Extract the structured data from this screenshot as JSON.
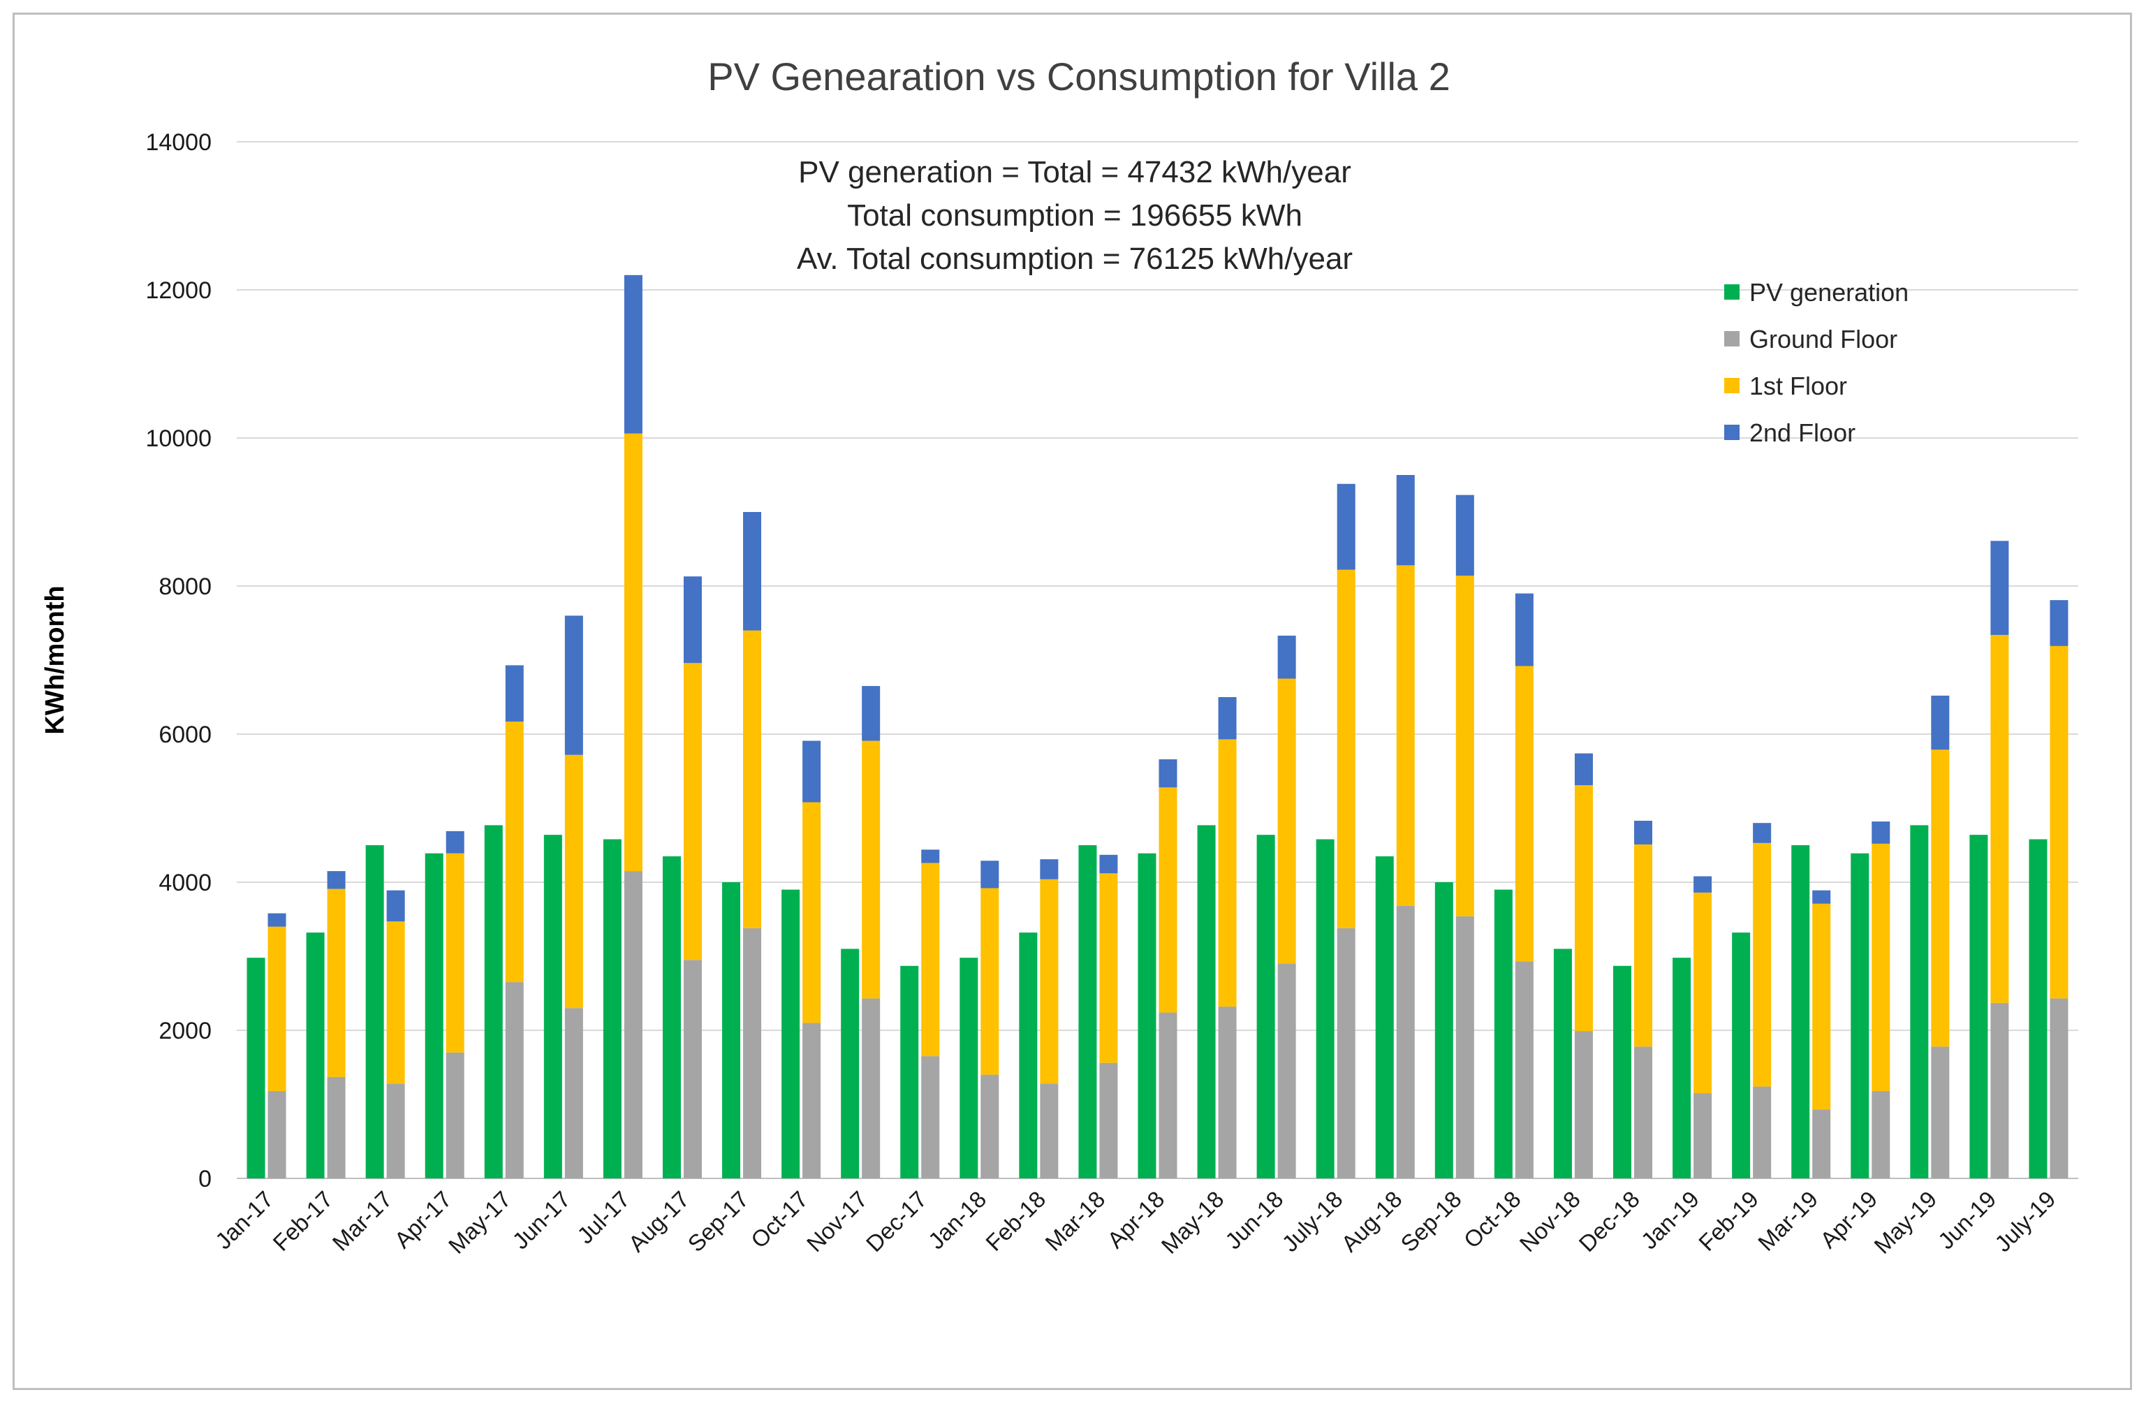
{
  "chart_data": {
    "type": "bar",
    "title": "PV Genearation vs Consumption for Villa 2",
    "xlabel": "",
    "ylabel": "KWh/month",
    "ylim": [
      0,
      14000
    ],
    "yticks": [
      0,
      2000,
      4000,
      6000,
      8000,
      10000,
      12000,
      14000
    ],
    "grid": true,
    "legend_position": "top-right",
    "annotations": [
      "PV generation = Total = 47432 kWh/year",
      "Total consumption = 196655 kWh",
      "Av. Total consumption = 76125 kWh/year"
    ],
    "categories": [
      "Jan-17",
      "Feb-17",
      "Mar-17",
      "Apr-17",
      "May-17",
      "Jun-17",
      "Jul-17",
      "Aug-17",
      "Sep-17",
      "Oct-17",
      "Nov-17",
      "Dec-17",
      "Jan-18",
      "Feb-18",
      "Mar-18",
      "Apr-18",
      "May-18",
      "Jun-18",
      "July-18",
      "Aug-18",
      "Sep-18",
      "Oct-18",
      "Nov-18",
      "Dec-18",
      "Jan-19",
      "Feb-19",
      "Mar-19",
      "Apr-19",
      "May-19",
      "Jun-19",
      "July-19"
    ],
    "series": [
      {
        "name": "PV generation",
        "color": "#00b050",
        "stack": "pv",
        "values": [
          2980,
          3320,
          4500,
          4390,
          4770,
          4640,
          4580,
          4350,
          4000,
          3900,
          3100,
          2870,
          2980,
          3320,
          4500,
          4390,
          4770,
          4640,
          4580,
          4350,
          4000,
          3900,
          3100,
          2870,
          2980,
          3320,
          4500,
          4390,
          4770,
          4640,
          4580
        ]
      },
      {
        "name": "Ground Floor",
        "color": "#a5a5a5",
        "stack": "consumption",
        "values": [
          1180,
          1370,
          1280,
          1700,
          2650,
          2300,
          4150,
          2950,
          3380,
          2100,
          2430,
          1650,
          1400,
          1280,
          1560,
          2240,
          2320,
          2900,
          3380,
          3680,
          3540,
          2930,
          1990,
          1780,
          1150,
          1240,
          930,
          1180,
          1780,
          2370,
          2430
        ]
      },
      {
        "name": "1st Floor",
        "color": "#ffc000",
        "stack": "consumption",
        "values": [
          2220,
          2540,
          2190,
          2690,
          3520,
          3420,
          5910,
          4010,
          4020,
          2980,
          3480,
          2610,
          2520,
          2760,
          2560,
          3040,
          3610,
          3850,
          4840,
          4600,
          4600,
          3990,
          3320,
          2730,
          2710,
          3290,
          2780,
          3340,
          4010,
          4970,
          4760
        ]
      },
      {
        "name": "2nd Floor",
        "color": "#4472c4",
        "stack": "consumption",
        "values": [
          180,
          240,
          420,
          300,
          760,
          1880,
          2140,
          1170,
          1600,
          830,
          740,
          180,
          370,
          270,
          250,
          380,
          570,
          580,
          1160,
          1220,
          1090,
          980,
          430,
          320,
          220,
          270,
          180,
          300,
          730,
          1270,
          620
        ]
      }
    ]
  }
}
